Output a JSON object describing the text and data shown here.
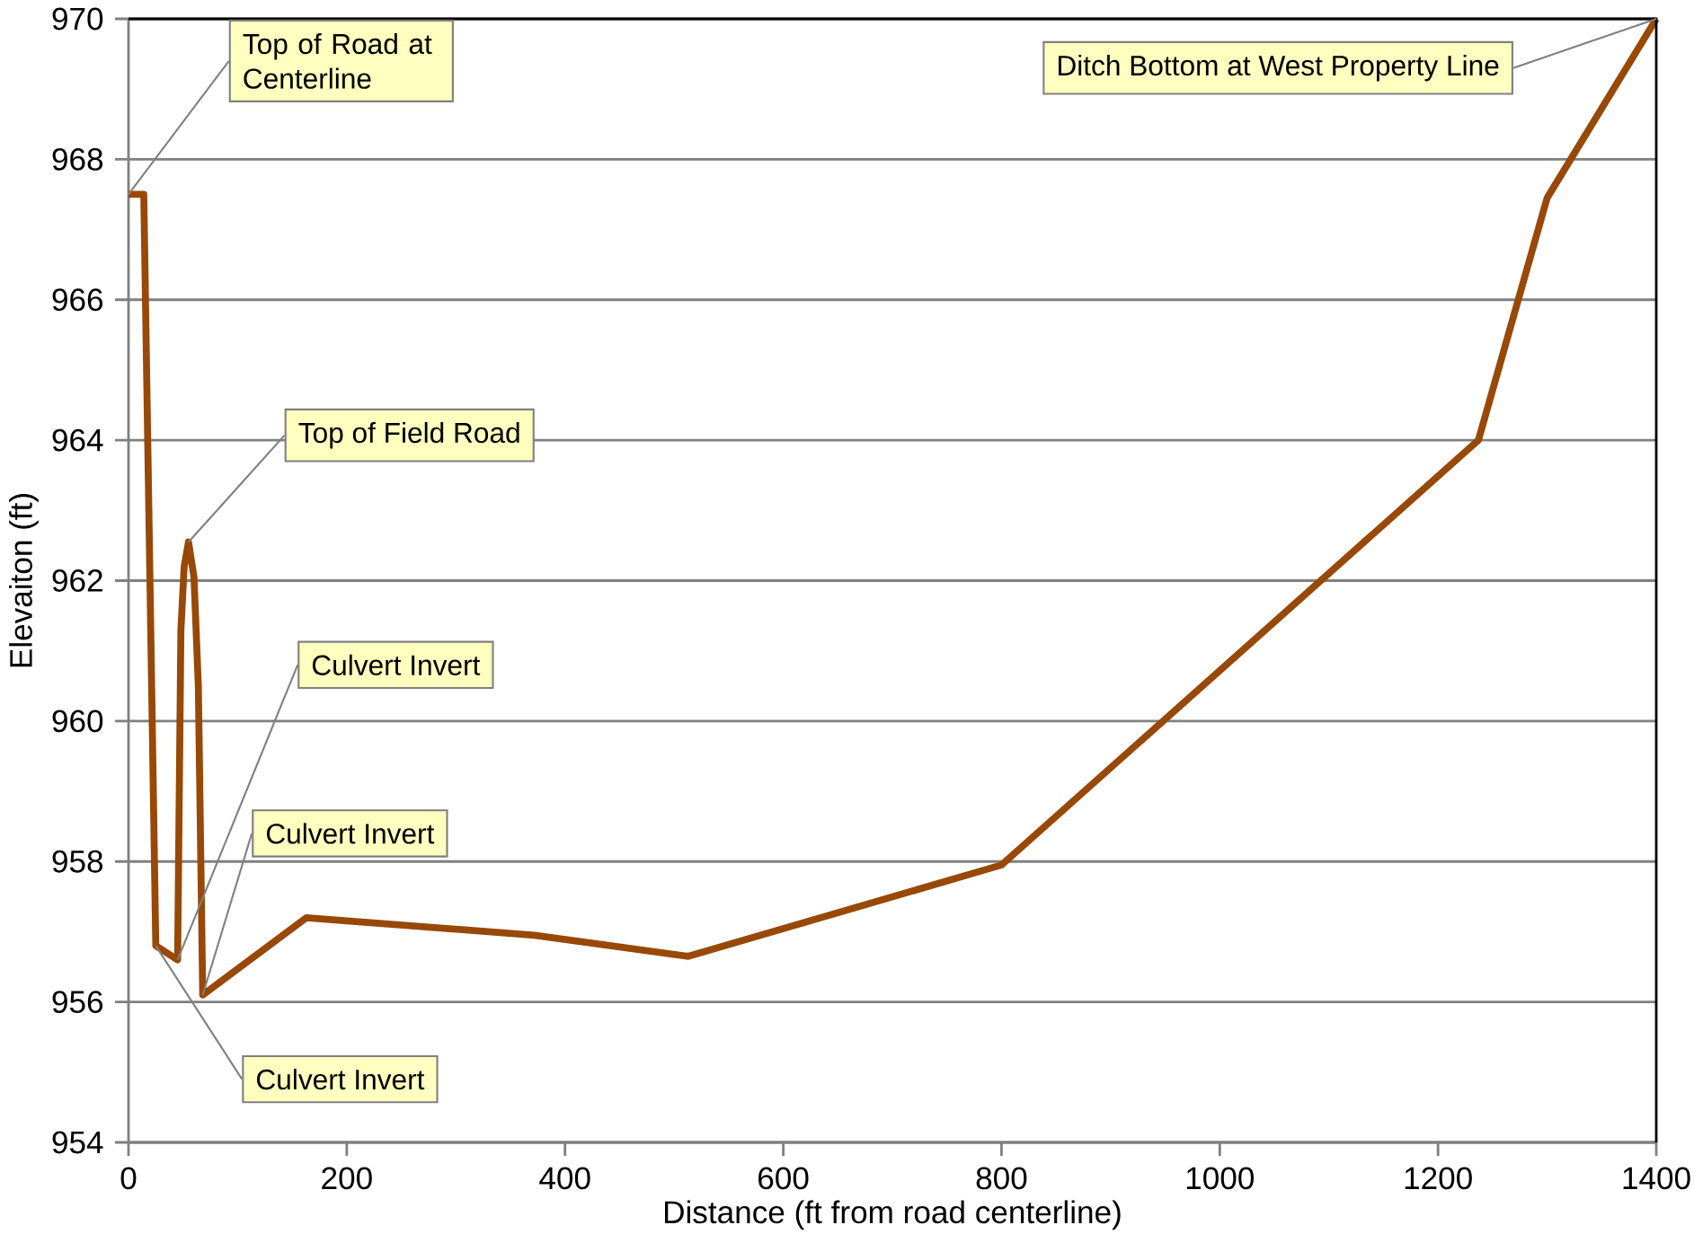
{
  "chart_data": {
    "type": "line",
    "xlabel": "Distance (ft from road centerline)",
    "ylabel": "Elevaiton (ft)",
    "x": [
      0,
      14,
      25,
      45,
      48,
      51,
      55,
      60,
      64,
      68,
      163,
      372,
      513,
      800,
      1237,
      1300,
      1400
    ],
    "series": [
      {
        "color": "#984807",
        "values": [
          967.5,
          967.5,
          956.8,
          956.6,
          961.3,
          962.2,
          962.55,
          962.05,
          960.5,
          956.1,
          957.2,
          956.95,
          956.65,
          957.95,
          964.0,
          967.45,
          970.0
        ]
      }
    ],
    "xlim": [
      0,
      1400
    ],
    "ylim": [
      954,
      970
    ],
    "xticks": [
      0,
      200,
      400,
      600,
      800,
      1000,
      1200,
      1400
    ],
    "yticks": [
      954,
      956,
      958,
      960,
      962,
      964,
      966,
      968,
      970
    ],
    "grid": "y",
    "marker": "none",
    "line_style": "solid",
    "legend": false,
    "annotations": [
      {
        "text": "Top of Road at Centerline",
        "x": 0,
        "y": 967.5
      },
      {
        "text": "Ditch Bottom at West Property Line",
        "x": 1400,
        "y": 970
      },
      {
        "text": "Top of Field Road",
        "x": 55,
        "y": 962.55
      },
      {
        "text": "Culvert Invert",
        "x": 45,
        "y": 956.6
      },
      {
        "text": "Culvert Invert",
        "x": 68,
        "y": 956.1
      },
      {
        "text": "Culvert Invert",
        "x": 25,
        "y": 956.8
      }
    ]
  }
}
